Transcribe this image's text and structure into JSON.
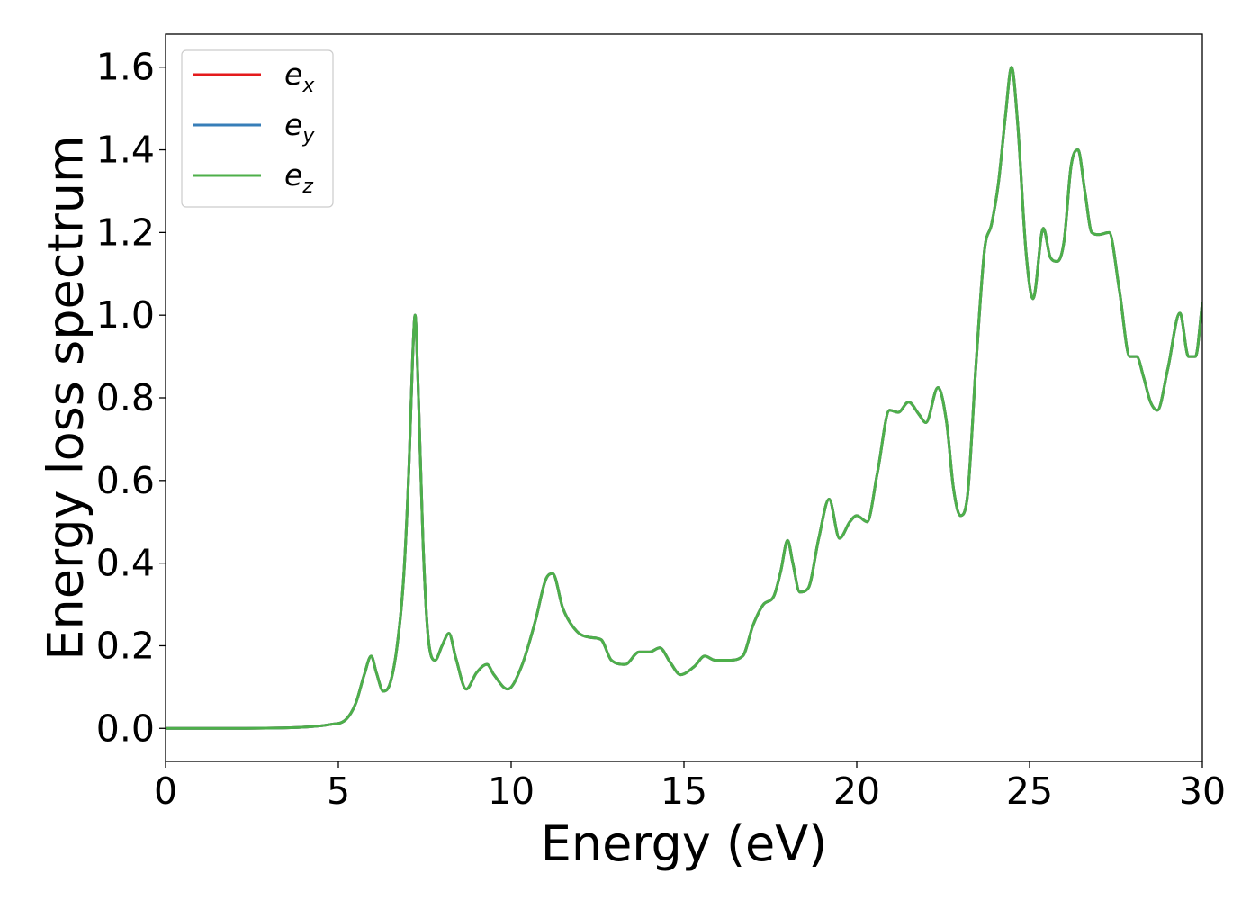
{
  "chart_data": {
    "type": "line",
    "title": "",
    "xlabel": "Energy (eV)",
    "ylabel": "Energy loss spectrum",
    "xlim": [
      0,
      30
    ],
    "ylim": [
      -0.08,
      1.68
    ],
    "xticks": [
      0,
      5,
      10,
      15,
      20,
      25,
      30
    ],
    "xtick_labels": [
      "0",
      "5",
      "10",
      "15",
      "20",
      "25",
      "30"
    ],
    "yticks": [
      0.0,
      0.2,
      0.4,
      0.6,
      0.8,
      1.0,
      1.2,
      1.4,
      1.6
    ],
    "ytick_labels": [
      "0.0",
      "0.2",
      "0.4",
      "0.6",
      "0.8",
      "1.0",
      "1.2",
      "1.4",
      "1.6"
    ],
    "grid": false,
    "legend_position": "top-left",
    "series": [
      {
        "name": "e",
        "subscript": "x",
        "color": "#e41a1c",
        "x": [
          0,
          2,
          4,
          4.8,
          5.2,
          5.5,
          5.75,
          5.95,
          6.1,
          6.3,
          6.5,
          6.7,
          6.9,
          7.05,
          7.15,
          7.22,
          7.3,
          7.45,
          7.6,
          7.8,
          8.0,
          8.2,
          8.4,
          8.7,
          9.0,
          9.3,
          9.5,
          9.9,
          10.3,
          10.7,
          11.0,
          11.2,
          11.5,
          11.9,
          12.3,
          12.6,
          12.9,
          13.3,
          13.7,
          14.0,
          14.3,
          14.6,
          14.9,
          15.3,
          15.6,
          15.9,
          16.3,
          16.7,
          17.0,
          17.3,
          17.6,
          17.8,
          18.0,
          18.15,
          18.35,
          18.6,
          18.9,
          19.2,
          19.5,
          19.8,
          20.0,
          20.3,
          20.6,
          20.95,
          21.2,
          21.5,
          21.8,
          22.0,
          22.35,
          22.6,
          22.8,
          23.0,
          23.2,
          23.45,
          23.7,
          23.9,
          24.1,
          24.3,
          24.48,
          24.65,
          24.9,
          25.1,
          25.4,
          25.6,
          25.8,
          26.0,
          26.2,
          26.4,
          26.6,
          26.8,
          27.0,
          27.3,
          27.6,
          27.9,
          28.1,
          28.3,
          28.5,
          28.7,
          29.0,
          29.35,
          29.6,
          29.8,
          30.0
        ],
        "y": [
          0.0,
          0.0,
          0.003,
          0.01,
          0.02,
          0.06,
          0.13,
          0.175,
          0.135,
          0.09,
          0.11,
          0.2,
          0.38,
          0.65,
          0.9,
          1.0,
          0.85,
          0.45,
          0.22,
          0.165,
          0.2,
          0.23,
          0.17,
          0.095,
          0.135,
          0.155,
          0.13,
          0.095,
          0.15,
          0.26,
          0.36,
          0.375,
          0.29,
          0.235,
          0.22,
          0.215,
          0.165,
          0.155,
          0.185,
          0.185,
          0.195,
          0.16,
          0.13,
          0.15,
          0.175,
          0.165,
          0.165,
          0.175,
          0.25,
          0.3,
          0.32,
          0.38,
          0.455,
          0.4,
          0.33,
          0.34,
          0.46,
          0.555,
          0.46,
          0.5,
          0.515,
          0.5,
          0.62,
          0.77,
          0.765,
          0.79,
          0.76,
          0.74,
          0.825,
          0.74,
          0.58,
          0.515,
          0.56,
          0.88,
          1.16,
          1.22,
          1.32,
          1.48,
          1.6,
          1.47,
          1.15,
          1.04,
          1.21,
          1.14,
          1.13,
          1.18,
          1.36,
          1.4,
          1.3,
          1.2,
          1.195,
          1.2,
          1.06,
          0.9,
          0.9,
          0.85,
          0.79,
          0.77,
          0.87,
          1.005,
          0.9,
          0.9,
          1.03
        ]
      },
      {
        "name": "e",
        "subscript": "y",
        "color": "#377eb8",
        "x": [
          0,
          2,
          4,
          4.8,
          5.2,
          5.5,
          5.75,
          5.95,
          6.1,
          6.3,
          6.5,
          6.7,
          6.9,
          7.05,
          7.15,
          7.22,
          7.3,
          7.45,
          7.6,
          7.8,
          8.0,
          8.2,
          8.4,
          8.7,
          9.0,
          9.3,
          9.5,
          9.9,
          10.3,
          10.7,
          11.0,
          11.2,
          11.5,
          11.9,
          12.3,
          12.6,
          12.9,
          13.3,
          13.7,
          14.0,
          14.3,
          14.6,
          14.9,
          15.3,
          15.6,
          15.9,
          16.3,
          16.7,
          17.0,
          17.3,
          17.6,
          17.8,
          18.0,
          18.15,
          18.35,
          18.6,
          18.9,
          19.2,
          19.5,
          19.8,
          20.0,
          20.3,
          20.6,
          20.95,
          21.2,
          21.5,
          21.8,
          22.0,
          22.35,
          22.6,
          22.8,
          23.0,
          23.2,
          23.45,
          23.7,
          23.9,
          24.1,
          24.3,
          24.48,
          24.65,
          24.9,
          25.1,
          25.4,
          25.6,
          25.8,
          26.0,
          26.2,
          26.4,
          26.6,
          26.8,
          27.0,
          27.3,
          27.6,
          27.9,
          28.1,
          28.3,
          28.5,
          28.7,
          29.0,
          29.35,
          29.6,
          29.8,
          30.0
        ],
        "y": [
          0.0,
          0.0,
          0.003,
          0.01,
          0.02,
          0.06,
          0.13,
          0.175,
          0.135,
          0.09,
          0.11,
          0.2,
          0.38,
          0.65,
          0.9,
          1.0,
          0.85,
          0.45,
          0.22,
          0.165,
          0.2,
          0.23,
          0.17,
          0.095,
          0.135,
          0.155,
          0.13,
          0.095,
          0.15,
          0.26,
          0.36,
          0.375,
          0.29,
          0.235,
          0.22,
          0.215,
          0.165,
          0.155,
          0.185,
          0.185,
          0.195,
          0.16,
          0.13,
          0.15,
          0.175,
          0.165,
          0.165,
          0.175,
          0.25,
          0.3,
          0.32,
          0.38,
          0.455,
          0.4,
          0.33,
          0.34,
          0.46,
          0.555,
          0.46,
          0.5,
          0.515,
          0.5,
          0.62,
          0.77,
          0.765,
          0.79,
          0.76,
          0.74,
          0.825,
          0.74,
          0.58,
          0.515,
          0.56,
          0.88,
          1.16,
          1.22,
          1.32,
          1.48,
          1.6,
          1.47,
          1.15,
          1.04,
          1.21,
          1.14,
          1.13,
          1.18,
          1.36,
          1.4,
          1.3,
          1.2,
          1.195,
          1.2,
          1.06,
          0.9,
          0.9,
          0.85,
          0.79,
          0.77,
          0.87,
          1.005,
          0.9,
          0.9,
          1.03
        ]
      },
      {
        "name": "e",
        "subscript": "z",
        "color": "#4daf4a",
        "x": [
          0,
          2,
          4,
          4.8,
          5.2,
          5.5,
          5.75,
          5.95,
          6.1,
          6.3,
          6.5,
          6.7,
          6.9,
          7.05,
          7.15,
          7.22,
          7.3,
          7.45,
          7.6,
          7.8,
          8.0,
          8.2,
          8.4,
          8.7,
          9.0,
          9.3,
          9.5,
          9.9,
          10.3,
          10.7,
          11.0,
          11.2,
          11.5,
          11.9,
          12.3,
          12.6,
          12.9,
          13.3,
          13.7,
          14.0,
          14.3,
          14.6,
          14.9,
          15.3,
          15.6,
          15.9,
          16.3,
          16.7,
          17.0,
          17.3,
          17.6,
          17.8,
          18.0,
          18.15,
          18.35,
          18.6,
          18.9,
          19.2,
          19.5,
          19.8,
          20.0,
          20.3,
          20.6,
          20.95,
          21.2,
          21.5,
          21.8,
          22.0,
          22.35,
          22.6,
          22.8,
          23.0,
          23.2,
          23.45,
          23.7,
          23.9,
          24.1,
          24.3,
          24.48,
          24.65,
          24.9,
          25.1,
          25.4,
          25.6,
          25.8,
          26.0,
          26.2,
          26.4,
          26.6,
          26.8,
          27.0,
          27.3,
          27.6,
          27.9,
          28.1,
          28.3,
          28.5,
          28.7,
          29.0,
          29.35,
          29.6,
          29.8,
          30.0
        ],
        "y": [
          0.0,
          0.0,
          0.003,
          0.01,
          0.02,
          0.06,
          0.13,
          0.175,
          0.135,
          0.09,
          0.11,
          0.2,
          0.38,
          0.65,
          0.9,
          1.0,
          0.85,
          0.45,
          0.22,
          0.165,
          0.2,
          0.23,
          0.17,
          0.095,
          0.135,
          0.155,
          0.13,
          0.095,
          0.15,
          0.26,
          0.36,
          0.375,
          0.29,
          0.235,
          0.22,
          0.215,
          0.165,
          0.155,
          0.185,
          0.185,
          0.195,
          0.16,
          0.13,
          0.15,
          0.175,
          0.165,
          0.165,
          0.175,
          0.25,
          0.3,
          0.32,
          0.38,
          0.455,
          0.4,
          0.33,
          0.34,
          0.46,
          0.555,
          0.46,
          0.5,
          0.515,
          0.5,
          0.62,
          0.77,
          0.765,
          0.79,
          0.76,
          0.74,
          0.825,
          0.74,
          0.58,
          0.515,
          0.56,
          0.88,
          1.16,
          1.22,
          1.32,
          1.48,
          1.6,
          1.47,
          1.15,
          1.04,
          1.21,
          1.14,
          1.13,
          1.18,
          1.36,
          1.4,
          1.3,
          1.2,
          1.195,
          1.2,
          1.06,
          0.9,
          0.9,
          0.85,
          0.79,
          0.77,
          0.87,
          1.005,
          0.9,
          0.9,
          1.03
        ]
      }
    ]
  }
}
